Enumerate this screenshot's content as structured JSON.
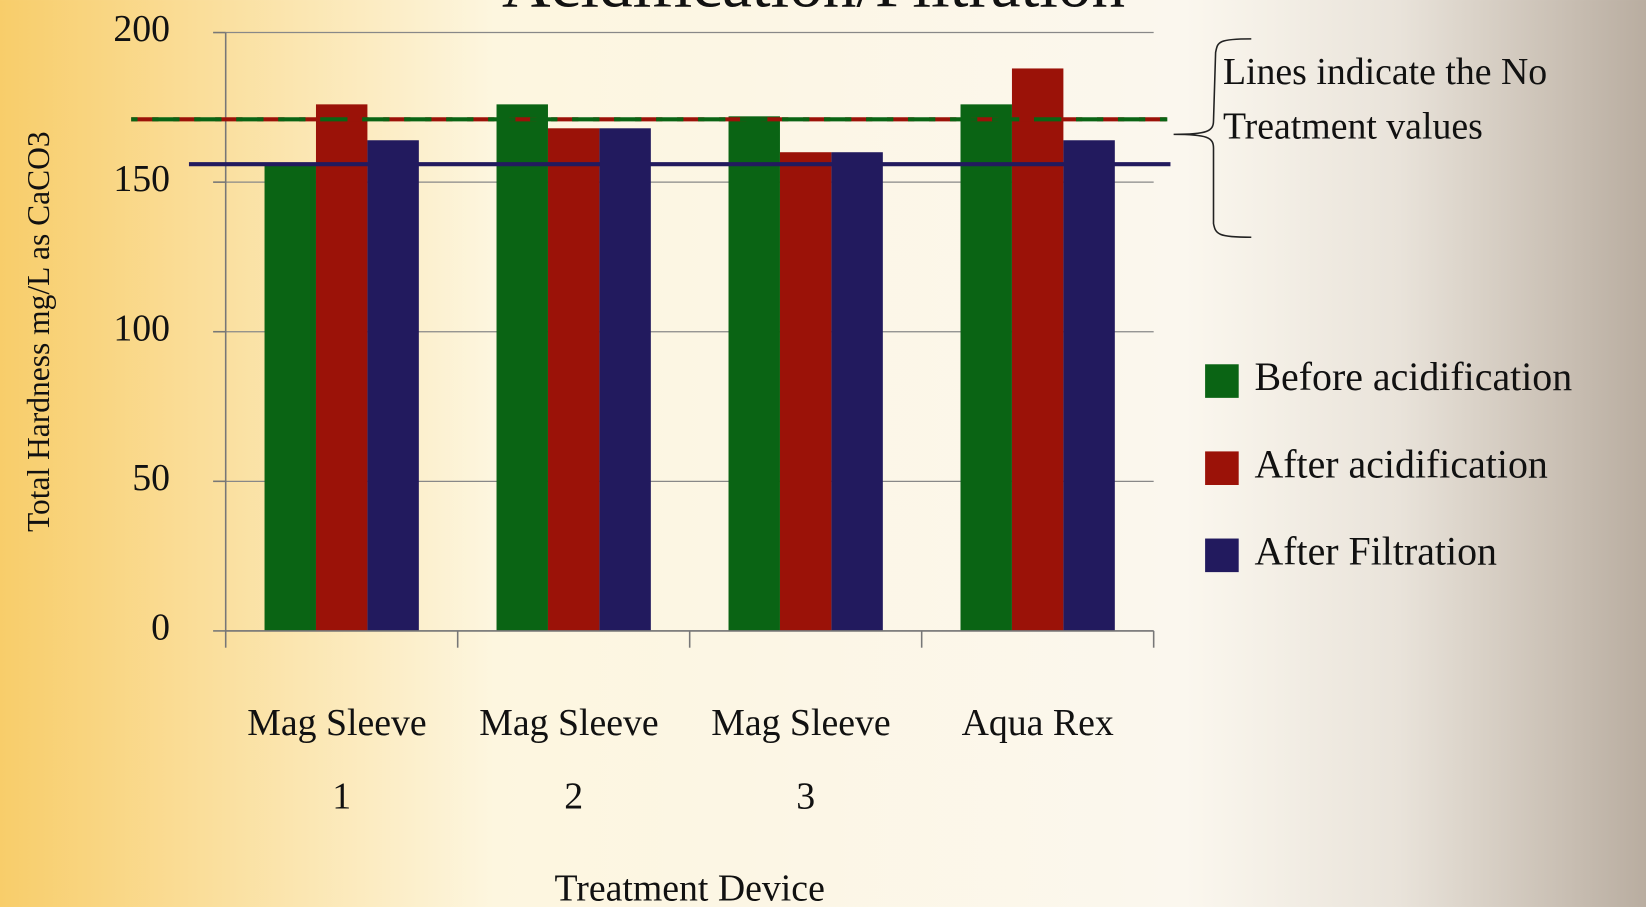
{
  "chart_data": {
    "type": "bar",
    "title": "Acidification/Filtration",
    "ylabel": "Total Hardness mg/L as CaCO3",
    "xlabel": "Treatment Device",
    "categories": [
      "Mag Sleeve 1",
      "Mag Sleeve 2",
      "Mag Sleeve 3",
      "Aqua Rex"
    ],
    "series": [
      {
        "name": "Before acidification",
        "color": "#0a6414",
        "values": [
          156,
          176,
          172,
          176
        ]
      },
      {
        "name": "After acidification",
        "color": "#9b1208",
        "values": [
          176,
          168,
          160,
          188
        ]
      },
      {
        "name": "After Filtration",
        "color": "#221a5e",
        "values": [
          164,
          168,
          160,
          164
        ]
      }
    ],
    "reference_lines": [
      {
        "value": 156,
        "color": "#221a5e",
        "dashed": false
      },
      {
        "value": 171,
        "color": "#9b1208",
        "dashed": true
      },
      {
        "value": 171,
        "color": "#0a6414",
        "dashed": true
      }
    ],
    "annotation_lines": [
      "Lines indicate the No",
      "Treatment values"
    ],
    "ylim": [
      0,
      200
    ],
    "yticks": [
      0,
      50,
      100,
      150,
      200
    ],
    "grid": true,
    "legend": "right"
  }
}
